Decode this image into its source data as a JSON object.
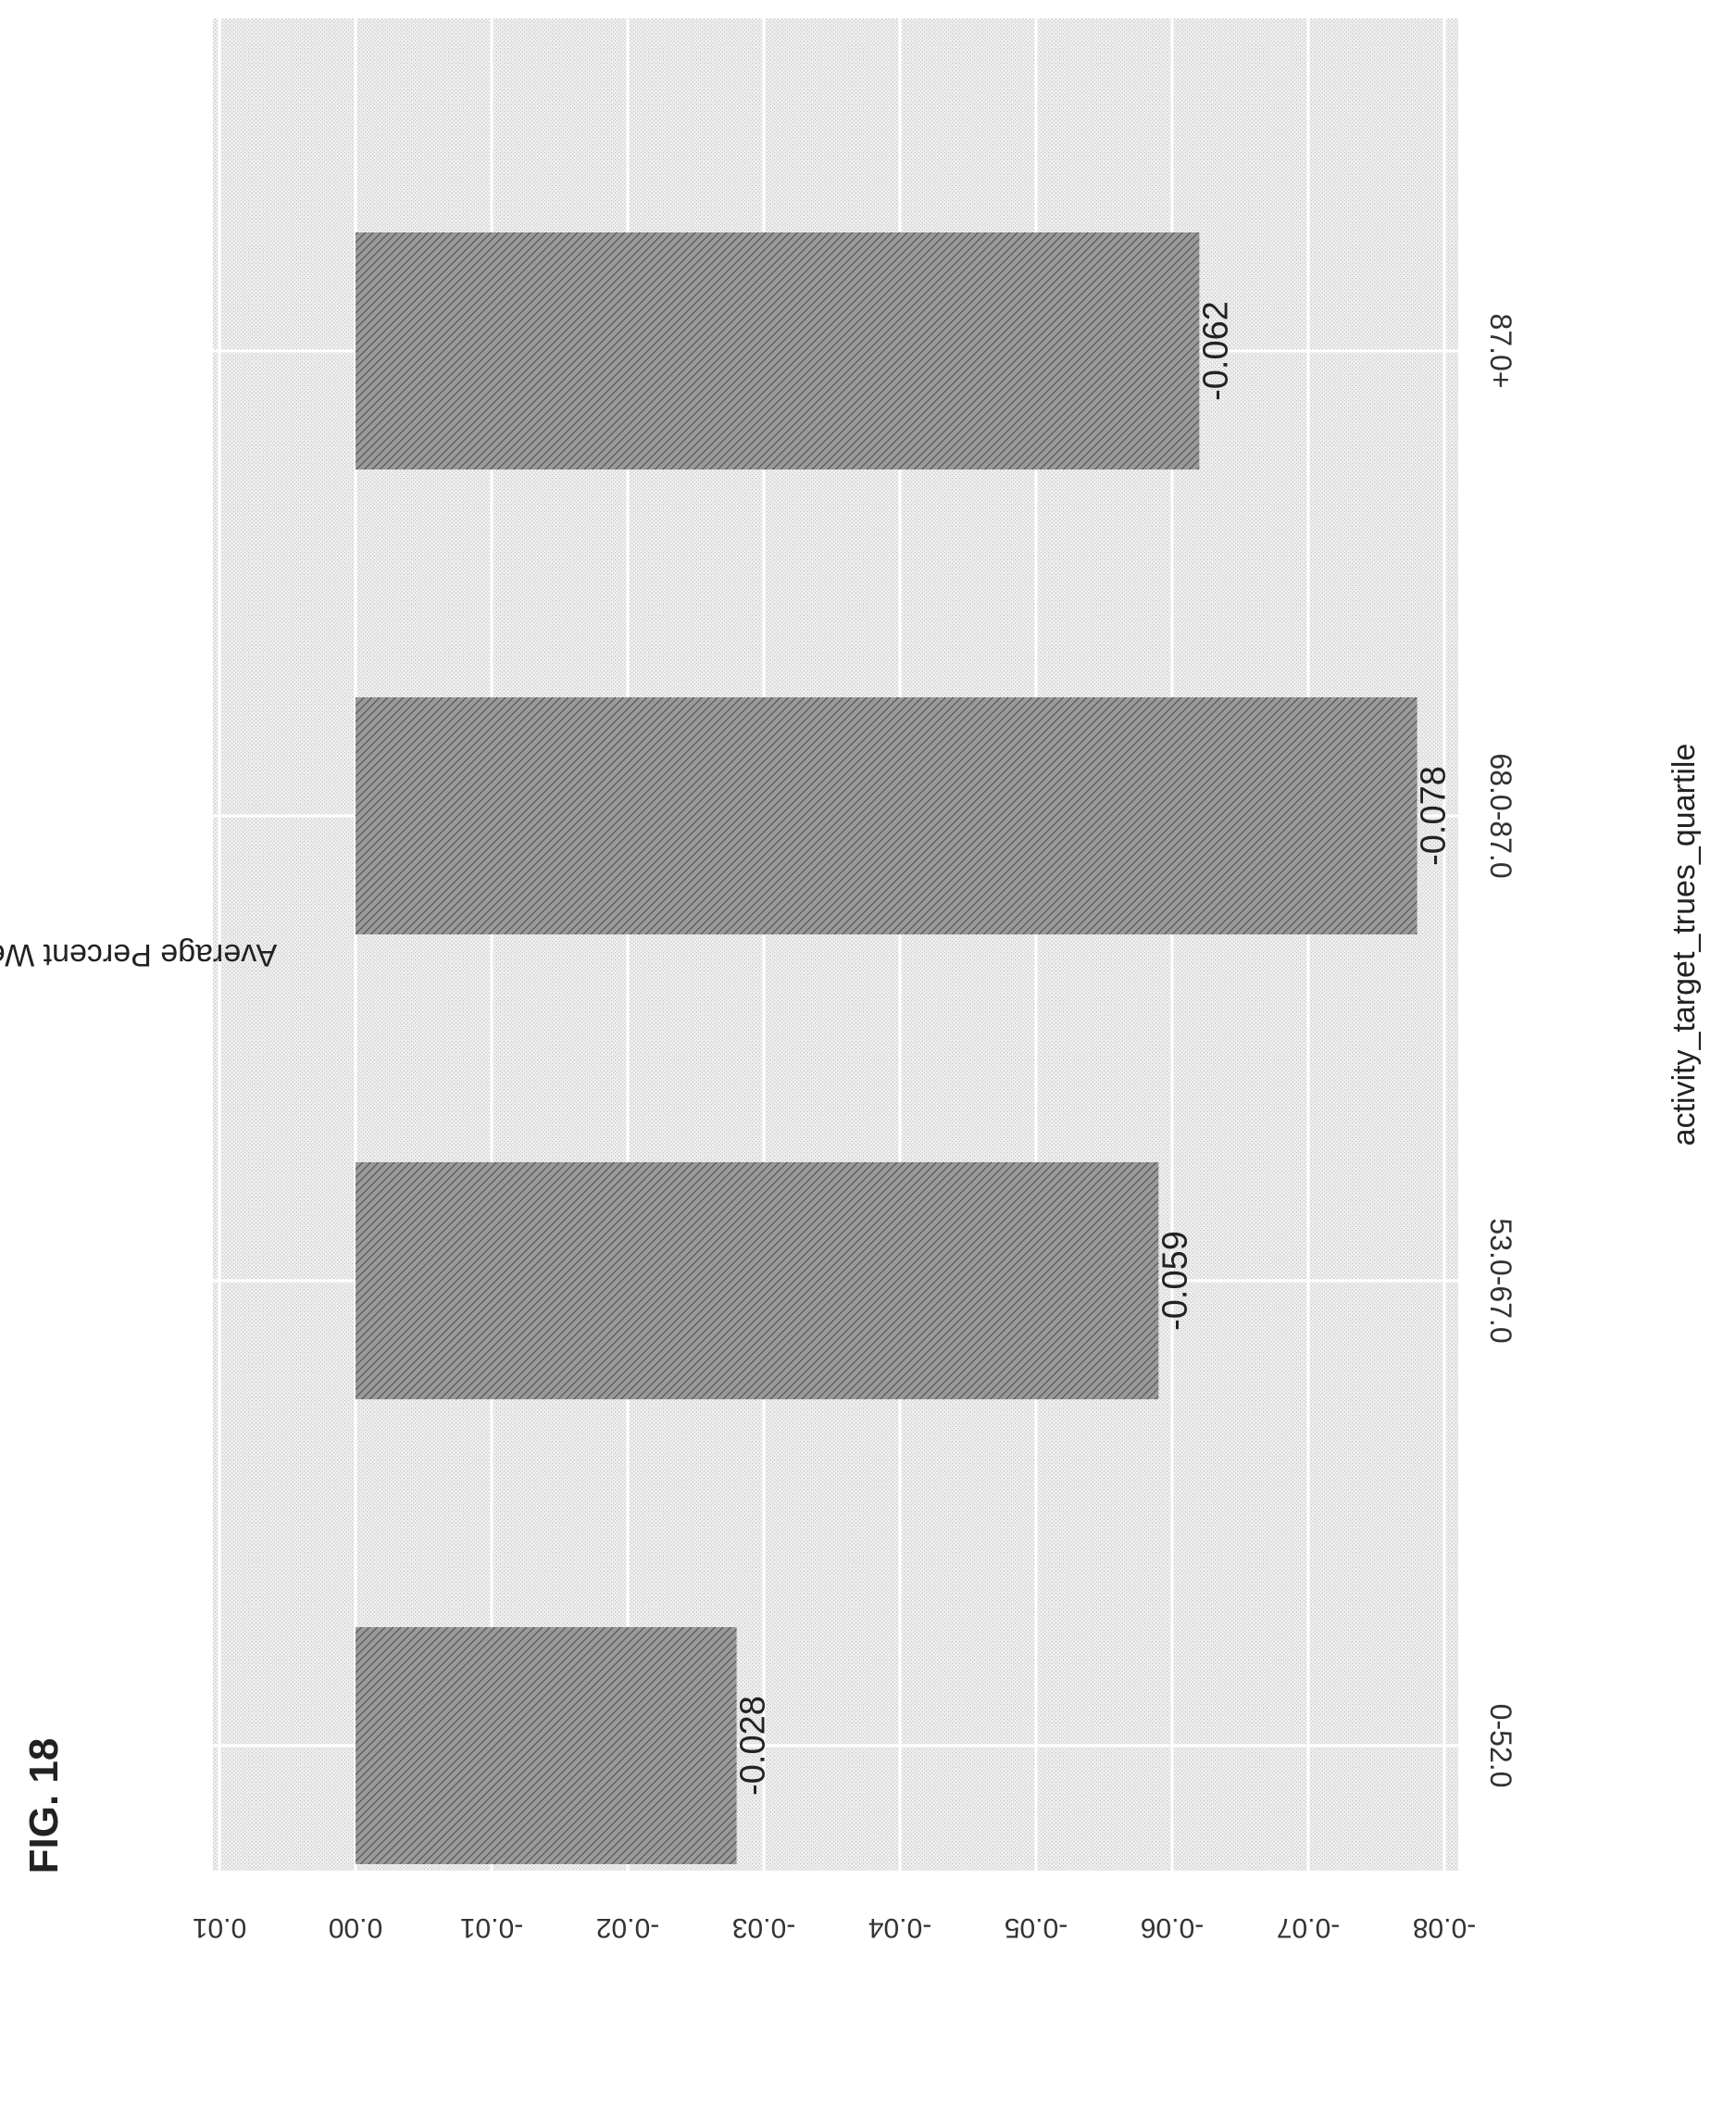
{
  "figure_label": "FIG. 18",
  "chart_data": {
    "type": "bar",
    "categories": [
      "0-52.0",
      "53.0-67.0",
      "68.0-87.0",
      "87.0+"
    ],
    "values": [
      -0.028,
      -0.059,
      -0.078,
      -0.062
    ],
    "data_labels": [
      "-0.028",
      "-0.059",
      "-0.078",
      "-0.062"
    ],
    "xlabel": "activity_target_trues_quartile",
    "ylabel": "Average Percent Weight Loss",
    "ylim": [
      -0.08,
      0.01
    ],
    "yticks": [
      0.01,
      0.0,
      -0.01,
      -0.02,
      -0.03,
      -0.04,
      -0.05,
      -0.06,
      -0.07,
      -0.08
    ],
    "ytick_labels": [
      "0.01",
      "0.00",
      "-0.01",
      "-0.02",
      "-0.03",
      "-0.04",
      "-0.05",
      "-0.06",
      "-0.07",
      "-0.08"
    ],
    "grid": true,
    "orientation": "rotated 90 degrees clockwise",
    "colors": {
      "panel": "#e4e4e4",
      "bar": "#8a8a8a",
      "text": "#222222"
    }
  }
}
